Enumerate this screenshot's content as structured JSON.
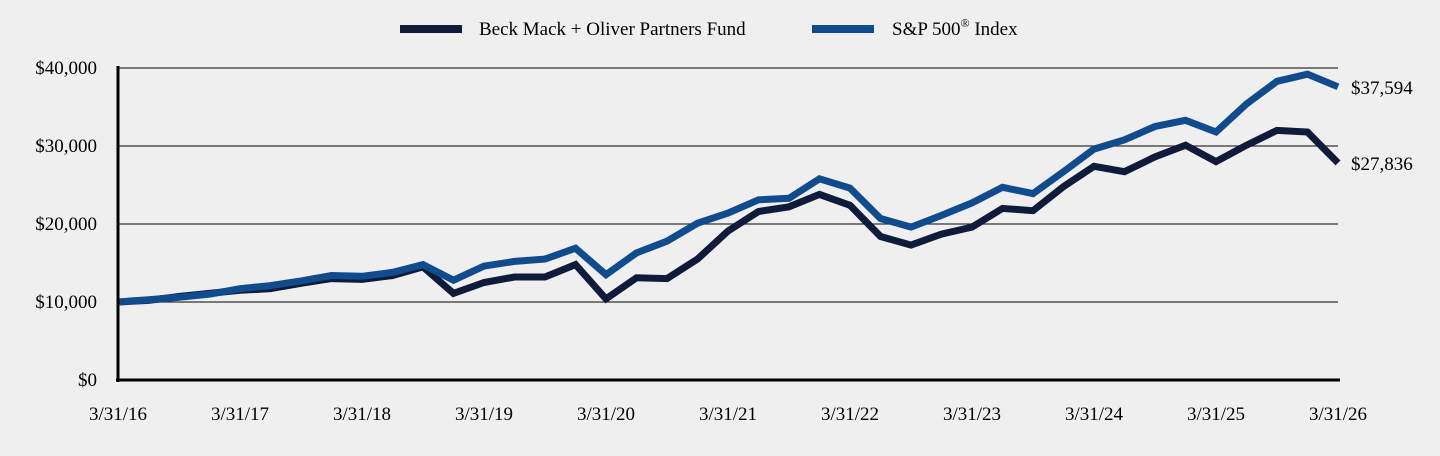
{
  "chart_data": {
    "type": "line",
    "x_ticks": [
      "3/31/16",
      "3/31/17",
      "3/31/18",
      "3/31/19",
      "3/31/20",
      "3/31/21",
      "3/31/22",
      "3/31/23",
      "3/31/24",
      "3/31/25",
      "3/31/26"
    ],
    "y_ticks": [
      "$0",
      "$10,000",
      "$20,000",
      "$30,000",
      "$40,000"
    ],
    "ylim": [
      0,
      40000
    ],
    "grid": true,
    "legend": "top-center",
    "x": [
      "3/31/16",
      "6/30/16",
      "9/30/16",
      "12/31/16",
      "3/31/17",
      "6/30/17",
      "9/30/17",
      "12/31/17",
      "3/31/18",
      "6/30/18",
      "9/30/18",
      "12/31/18",
      "3/31/19",
      "6/30/19",
      "9/30/19",
      "12/31/19",
      "3/31/20",
      "6/30/20",
      "9/30/20",
      "12/31/20",
      "3/31/21",
      "6/30/21",
      "9/30/21",
      "12/31/21",
      "3/31/22",
      "6/30/22",
      "9/30/22",
      "12/31/22",
      "3/31/23",
      "6/30/23",
      "9/30/23",
      "12/31/23",
      "3/31/24",
      "6/30/24",
      "9/30/24",
      "12/31/24",
      "3/31/25",
      "6/30/25",
      "9/30/25",
      "12/31/25",
      "3/31/26"
    ],
    "series": [
      {
        "name": "Beck Mack + Oliver Partners Fund",
        "color": "#0f1b3b",
        "values": [
          10000,
          10200,
          10700,
          11100,
          11500,
          11700,
          12400,
          13000,
          12900,
          13400,
          14500,
          11100,
          12500,
          13200,
          13200,
          14800,
          10400,
          13100,
          13000,
          15500,
          19100,
          21600,
          22200,
          23800,
          22400,
          18400,
          17300,
          18700,
          19600,
          22000,
          21700,
          24800,
          27400,
          26700,
          28600,
          30100,
          28000,
          30100,
          32000,
          31800,
          27836
        ],
        "end_label": "$27,836"
      },
      {
        "name": "S&P 500® Index",
        "color": "#104b8e",
        "values": [
          10000,
          10300,
          10600,
          11000,
          11700,
          12100,
          12700,
          13400,
          13300,
          13800,
          14800,
          12800,
          14600,
          15200,
          15500,
          16900,
          13500,
          16300,
          17800,
          20100,
          21400,
          23100,
          23300,
          25800,
          24600,
          20700,
          19600,
          21100,
          22700,
          24700,
          23900,
          26700,
          29600,
          30800,
          32500,
          33300,
          31800,
          35400,
          38300,
          39200,
          37594
        ],
        "end_label": "$37,594"
      }
    ]
  }
}
